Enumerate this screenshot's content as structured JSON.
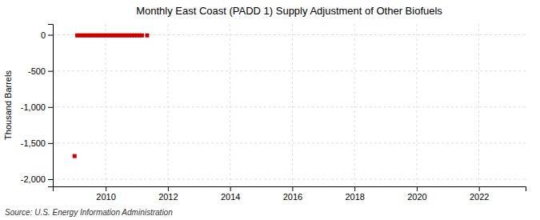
{
  "chart_data": {
    "type": "scatter",
    "title": "Monthly East Coast (PADD 1) Supply Adjustment of Other Biofuels",
    "ylabel": "Thousand Barrels",
    "annotations": [
      "Source: U.S. Energy Information Administration"
    ],
    "x": [
      2009.083,
      2009.167,
      2009.25,
      2009.333,
      2009.417,
      2009.5,
      2009.583,
      2009.667,
      2009.75,
      2009.833,
      2009.917,
      2010.0,
      2010.083,
      2010.167,
      2010.25,
      2010.333,
      2010.417,
      2010.5,
      2010.583,
      2010.667,
      2010.75,
      2010.833,
      2010.917,
      2011.0,
      2011.083,
      2011.167,
      2011.333,
      2009.0
    ],
    "values": [
      -8,
      -8,
      -8,
      -8,
      -8,
      -8,
      -8,
      -8,
      -8,
      -8,
      -8,
      -8,
      -8,
      -8,
      -8,
      -8,
      -8,
      -8,
      -8,
      -8,
      -8,
      -8,
      -8,
      -8,
      -8,
      -8,
      -8,
      -1680
    ],
    "color": "#cc0000",
    "marker": "square",
    "xlim": [
      2008.3,
      2023.5
    ],
    "ylim": [
      -2100,
      150
    ],
    "xticks": [
      2010,
      2012,
      2014,
      2016,
      2018,
      2020,
      2022
    ],
    "yticks": [
      0,
      -500,
      {
        "value": -1000,
        "label": "-1,000"
      },
      {
        "value": -1500,
        "label": "-1,500"
      },
      {
        "value": -2000,
        "label": "-2,000"
      }
    ],
    "grid": true
  }
}
